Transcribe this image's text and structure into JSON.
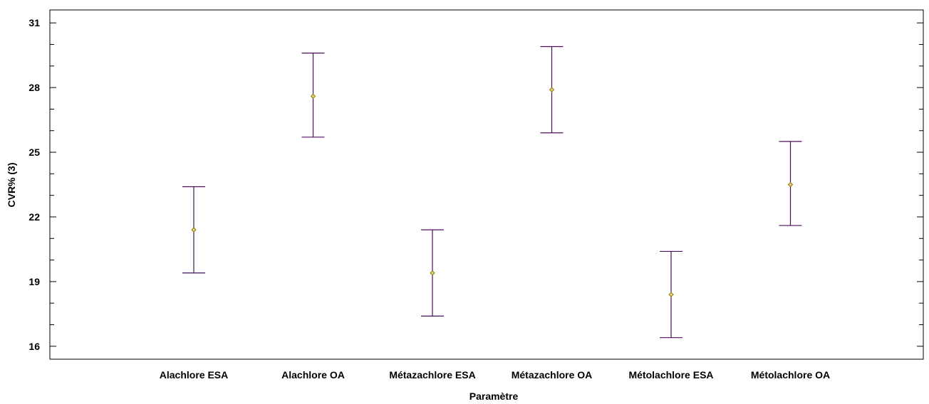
{
  "chart_data": {
    "type": "errorbar",
    "title": "",
    "xlabel": "Paramètre",
    "ylabel": "CVR% (3)",
    "ylim": [
      15.4,
      31.6
    ],
    "yticks": [
      16,
      19,
      22,
      25,
      28,
      31
    ],
    "categories": [
      "Alachlore ESA",
      "Alachlore OA",
      "Métazachlore ESA",
      "Métazachlore OA",
      "Métolachlore ESA",
      "Métolachlore OA"
    ],
    "means": [
      21.4,
      27.6,
      19.4,
      27.9,
      18.4,
      23.5
    ],
    "lower": [
      19.4,
      25.7,
      17.4,
      25.9,
      16.4,
      21.6
    ],
    "upper": [
      23.4,
      29.6,
      21.4,
      29.9,
      20.4,
      25.5
    ],
    "grid": false,
    "colors": {
      "errorbar": "#4b0f5a",
      "marker_fill": "#e8d27a",
      "marker_stroke": "#8a7a10",
      "axis": "#000000"
    }
  }
}
